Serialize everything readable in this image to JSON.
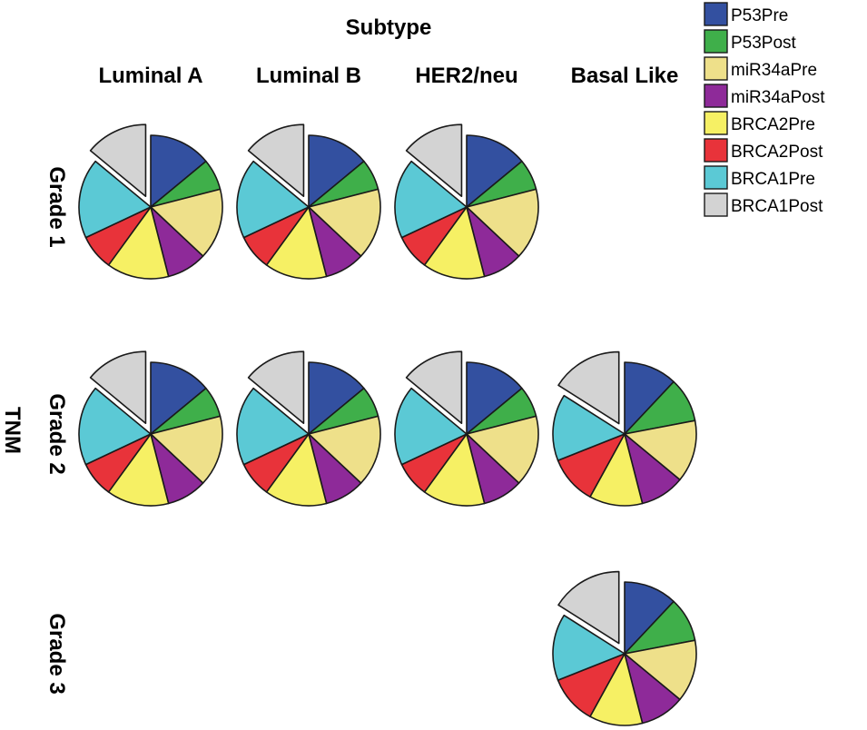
{
  "chart_data": {
    "type": "pie",
    "title": "Subtype",
    "row_axis_label": "TNM",
    "columns": [
      "Luminal A",
      "Luminal B",
      "HER2/neu",
      "Basal Like"
    ],
    "rows": [
      "Grade 1",
      "Grade 2",
      "Grade 3"
    ],
    "legend_position": "top-right",
    "series": [
      {
        "name": "P53Pre",
        "color": "#3350A0"
      },
      {
        "name": "P53Post",
        "color": "#3FAF4A"
      },
      {
        "name": "miR34aPre",
        "color": "#EEE08A"
      },
      {
        "name": "miR34aPost",
        "color": "#8E2A99"
      },
      {
        "name": "BRCA2Pre",
        "color": "#F6F064"
      },
      {
        "name": "BRCA2Post",
        "color": "#E8333A"
      },
      {
        "name": "BRCA1Pre",
        "color": "#5BC9D5"
      },
      {
        "name": "BRCA1Post",
        "color": "#D3D3D3"
      }
    ],
    "pies": [
      {
        "row": 0,
        "col": 0,
        "values": [
          14,
          7,
          16,
          9,
          14,
          8,
          18,
          14
        ],
        "exploded": [
          7
        ]
      },
      {
        "row": 0,
        "col": 1,
        "values": [
          14,
          7,
          16,
          9,
          14,
          8,
          18,
          14
        ],
        "exploded": [
          7
        ]
      },
      {
        "row": 0,
        "col": 2,
        "values": [
          14,
          7,
          16,
          9,
          14,
          8,
          18,
          14
        ],
        "exploded": [
          7
        ]
      },
      {
        "row": 1,
        "col": 0,
        "values": [
          14,
          7,
          16,
          9,
          14,
          8,
          18,
          14
        ],
        "exploded": [
          7
        ]
      },
      {
        "row": 1,
        "col": 1,
        "values": [
          14,
          7,
          16,
          9,
          14,
          8,
          18,
          14
        ],
        "exploded": [
          7
        ]
      },
      {
        "row": 1,
        "col": 2,
        "values": [
          14,
          7,
          16,
          9,
          14,
          8,
          18,
          14
        ],
        "exploded": [
          7
        ]
      },
      {
        "row": 1,
        "col": 3,
        "values": [
          12,
          10,
          14,
          10,
          12,
          11,
          15,
          16
        ],
        "exploded": [
          7
        ]
      },
      {
        "row": 2,
        "col": 3,
        "values": [
          12,
          10,
          14,
          10,
          12,
          11,
          15,
          16
        ],
        "exploded": [
          7
        ]
      }
    ]
  }
}
